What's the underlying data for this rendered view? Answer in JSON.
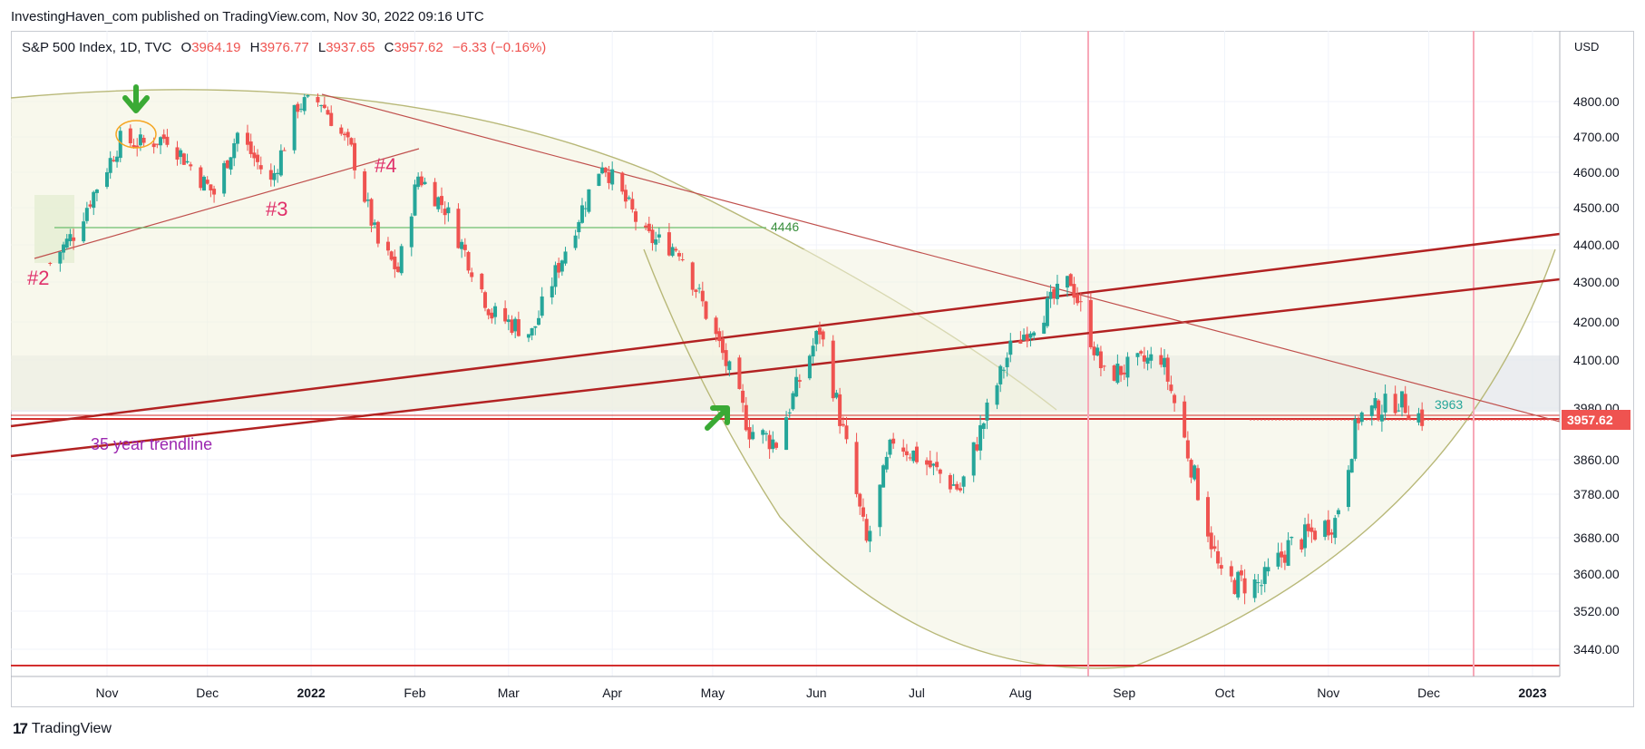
{
  "header": {
    "publisher": "InvestingHaven_com published on TradingView.com, Nov 30, 2022 09:16 UTC"
  },
  "legend": {
    "symbol": "S&P 500 Index, 1D, TVC",
    "o_label": "O",
    "o": "3964.19",
    "h_label": "H",
    "h": "3976.77",
    "l_label": "L",
    "l": "3937.65",
    "c_label": "C",
    "c": "3957.62",
    "change": "−6.33 (−0.16%)"
  },
  "footer": {
    "logo": "17",
    "brand": "TradingView"
  },
  "colors": {
    "up": "#26a69a",
    "down": "#ef5350",
    "trend_dark": "#b22222",
    "trend_thin": "#c0504d",
    "arc": "#b8b878",
    "arc_fill": "#f3f3e0",
    "annotation_pink": "#e0306a",
    "annotation_purple": "#9c27b0",
    "arrow_green": "#3aaa35",
    "vline": "#f7a8b8"
  },
  "chart_data": {
    "type": "candlestick",
    "title": "S&P 500 Index, 1D, TVC",
    "currency_label": "USD",
    "y_ticks": [
      "4800.00",
      "4700.00",
      "4600.00",
      "4500.00",
      "4400.00",
      "4300.00",
      "4200.00",
      "4100.00",
      "3980.00",
      "3860.00",
      "3780.00",
      "3680.00",
      "3600.00",
      "3520.00",
      "3440.00"
    ],
    "x_ticks": [
      "Nov",
      "Dec",
      "2022",
      "Feb",
      "Mar",
      "Apr",
      "May",
      "Jun",
      "Jul",
      "Aug",
      "Sep",
      "Oct",
      "Nov",
      "Dec",
      "2023"
    ],
    "last_price": "3957.62",
    "annotations": {
      "label_2": "#2",
      "label_3": "#3",
      "label_4": "#4",
      "level_4446": "4446",
      "level_3963": "3963",
      "trendline_label": "35 year trendline"
    },
    "ohlc_path": [
      [
        "2021-10-15",
        4350
      ],
      [
        "2021-10-22",
        4430
      ],
      [
        "2021-11-05",
        4690
      ],
      [
        "2021-11-12",
        4680
      ],
      [
        "2021-11-19",
        4700
      ],
      [
        "2021-11-30",
        4570
      ],
      [
        "2021-12-03",
        4540
      ],
      [
        "2021-12-10",
        4710
      ],
      [
        "2021-12-20",
        4570
      ],
      [
        "2021-12-28",
        4790
      ],
      [
        "2022-01-04",
        4800
      ],
      [
        "2022-01-13",
        4660
      ],
      [
        "2022-01-21",
        4400
      ],
      [
        "2022-01-27",
        4330
      ],
      [
        "2022-02-02",
        4590
      ],
      [
        "2022-02-10",
        4500
      ],
      [
        "2022-02-24",
        4220
      ],
      [
        "2022-03-08",
        4170
      ],
      [
        "2022-03-29",
        4630
      ],
      [
        "2022-04-11",
        4420
      ],
      [
        "2022-04-21",
        4390
      ],
      [
        "2022-05-02",
        4160
      ],
      [
        "2022-05-12",
        3930
      ],
      [
        "2022-05-20",
        3900
      ],
      [
        "2022-06-02",
        4180
      ],
      [
        "2022-06-16",
        3666
      ],
      [
        "2022-06-24",
        3910
      ],
      [
        "2022-07-14",
        3790
      ],
      [
        "2022-07-29",
        4130
      ],
      [
        "2022-08-16",
        4305
      ],
      [
        "2022-08-26",
        4060
      ],
      [
        "2022-09-12",
        4110
      ],
      [
        "2022-09-30",
        3585
      ],
      [
        "2022-10-12",
        3577
      ],
      [
        "2022-10-20",
        3660
      ],
      [
        "2022-11-03",
        3720
      ],
      [
        "2022-11-10",
        3960
      ],
      [
        "2022-11-22",
        4000
      ],
      [
        "2022-11-29",
        3957
      ]
    ]
  }
}
